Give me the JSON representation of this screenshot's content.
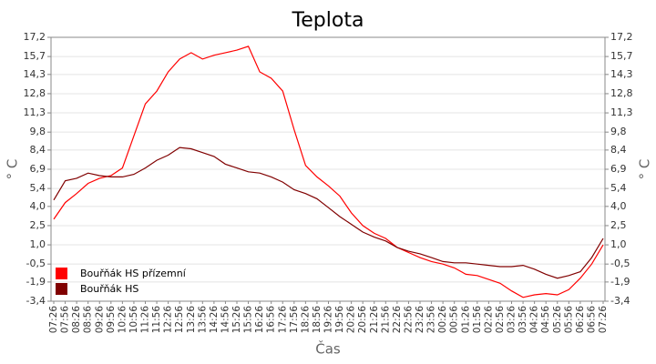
{
  "chart_data": {
    "type": "line",
    "title": "Teplota",
    "x_label": "Čas",
    "y_label": "° C",
    "categories": [
      "07:26",
      "07:56",
      "08:26",
      "08:56",
      "09:26",
      "09:56",
      "10:26",
      "10:56",
      "11:26",
      "11:56",
      "12:26",
      "12:56",
      "13:26",
      "13:56",
      "14:26",
      "14:56",
      "15:26",
      "15:56",
      "16:26",
      "16:56",
      "17:26",
      "17:56",
      "18:26",
      "18:56",
      "19:26",
      "19:56",
      "20:26",
      "20:56",
      "21:26",
      "21:56",
      "22:26",
      "22:56",
      "23:26",
      "23:56",
      "00:26",
      "00:56",
      "01:26",
      "01:56",
      "02:26",
      "02:56",
      "03:26",
      "03:56",
      "04:26",
      "04:56",
      "05:26",
      "05:56",
      "06:26",
      "06:56",
      "07:26"
    ],
    "series": [
      {
        "name": "Bouřňák HS přízemní",
        "color": "#ff0000",
        "values": [
          3.0,
          4.3,
          5.0,
          5.8,
          6.2,
          6.4,
          7.0,
          9.5,
          12.0,
          13.0,
          14.5,
          15.5,
          16.0,
          15.5,
          15.8,
          16.0,
          16.2,
          16.5,
          14.5,
          14.0,
          13.0,
          10.0,
          7.2,
          6.3,
          5.6,
          4.8,
          3.5,
          2.5,
          1.9,
          1.5,
          0.8,
          0.4,
          0.0,
          -0.3,
          -0.5,
          -0.8,
          -1.3,
          -1.4,
          -1.7,
          -2.0,
          -2.6,
          -3.1,
          -2.9,
          -2.8,
          -2.9,
          -2.5,
          -1.6,
          -0.5,
          1.0
        ]
      },
      {
        "name": "Bouřňák HS",
        "color": "#800000",
        "values": [
          4.5,
          6.0,
          6.2,
          6.6,
          6.4,
          6.3,
          6.3,
          6.5,
          7.0,
          7.6,
          8.0,
          8.6,
          8.5,
          8.2,
          7.9,
          7.3,
          7.0,
          6.7,
          6.6,
          6.3,
          5.9,
          5.3,
          5.0,
          4.6,
          3.9,
          3.2,
          2.6,
          2.0,
          1.6,
          1.3,
          0.8,
          0.5,
          0.3,
          0.0,
          -0.3,
          -0.4,
          -0.4,
          -0.5,
          -0.6,
          -0.7,
          -0.7,
          -0.6,
          -0.9,
          -1.3,
          -1.6,
          -1.4,
          -1.1,
          0.0,
          1.5
        ]
      }
    ],
    "ylim": [
      -3.4,
      17.2
    ],
    "yticks": [
      {
        "value": -3.4,
        "label": "-3,4"
      },
      {
        "value": -1.9,
        "label": "-1,9"
      },
      {
        "value": -0.5,
        "label": "-0,5"
      },
      {
        "value": 1.0,
        "label": "1,0"
      },
      {
        "value": 2.5,
        "label": "2,5"
      },
      {
        "value": 4.0,
        "label": "4,0"
      },
      {
        "value": 5.4,
        "label": "5,4"
      },
      {
        "value": 6.9,
        "label": "6,9"
      },
      {
        "value": 8.4,
        "label": "8,4"
      },
      {
        "value": 9.8,
        "label": "9,8"
      },
      {
        "value": 11.3,
        "label": "11,3"
      },
      {
        "value": 12.8,
        "label": "12,8"
      },
      {
        "value": 14.3,
        "label": "14,3"
      },
      {
        "value": 15.7,
        "label": "15,7"
      },
      {
        "value": 17.2,
        "label": "17,2"
      }
    ],
    "grid": true,
    "legend": "lower left"
  }
}
